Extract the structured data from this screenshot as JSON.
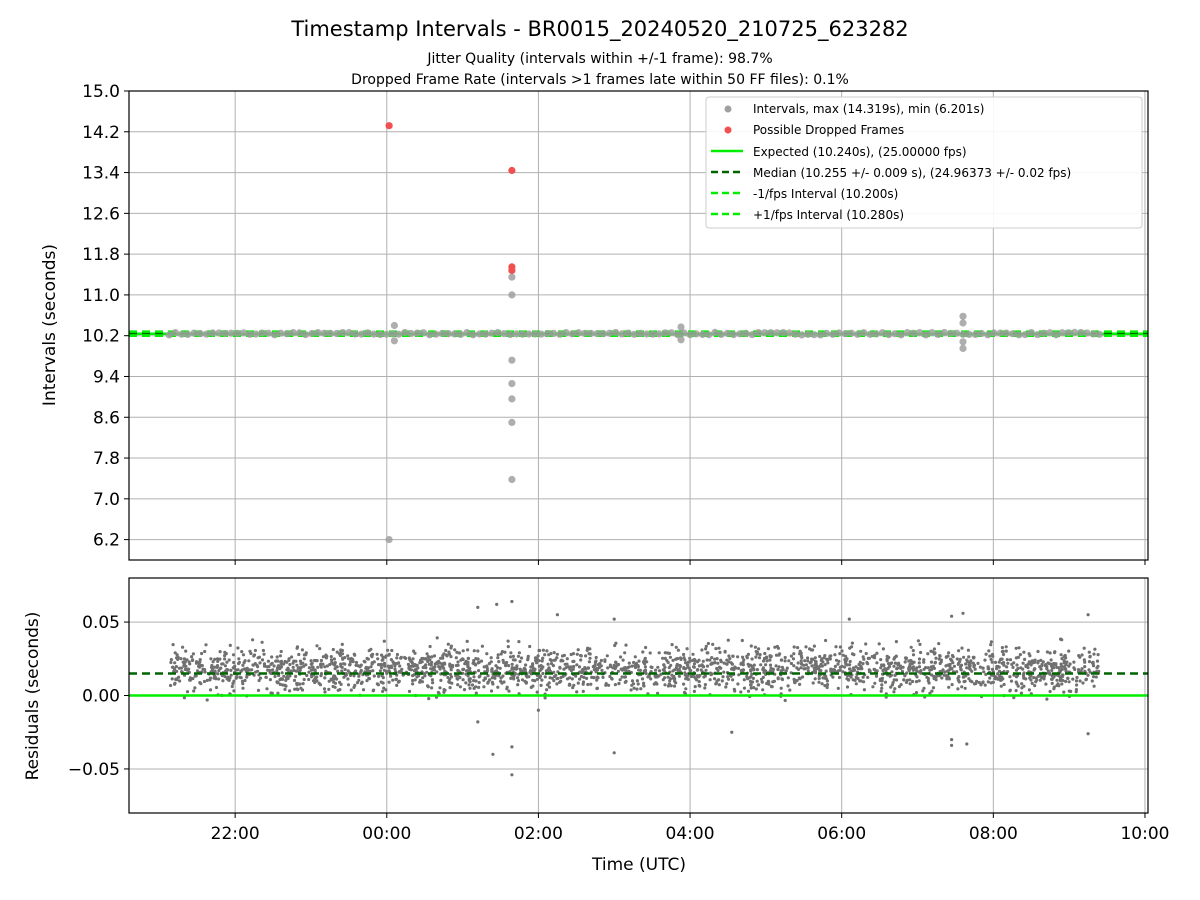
{
  "chart_data": [
    {
      "type": "scatter",
      "title": "Timestamp Intervals - BR0015_20240520_210725_623282",
      "subtitle_1": "Jitter Quality (intervals within +/-1 frame): 98.7%",
      "subtitle_2": "Dropped Frame Rate (intervals >1 frames late within 50 FF files): 0.1%",
      "xlabel": "Time (UTC)",
      "ylabel": "Intervals (seconds)",
      "x_range_hours": [
        20.6,
        34.04
      ],
      "ylim": [
        5.8,
        15.0
      ],
      "y_ticks": [
        "6.2",
        "7.0",
        "7.8",
        "8.6",
        "9.4",
        "10.2",
        "11.0",
        "11.8",
        "12.6",
        "13.4",
        "14.2",
        "15.0"
      ],
      "grid": true,
      "legend_position": "upper right",
      "series": [
        {
          "name": "Intervals, max (14.319s), min (6.201s)",
          "color": "#a0a0a0",
          "marker": "circle",
          "baseline_range_hours": [
            21.13,
            33.4
          ],
          "baseline_value": 10.24,
          "outliers": [
            {
              "x": 24.03,
              "y": 6.201
            },
            {
              "x": 24.1,
              "y": 10.4
            },
            {
              "x": 24.1,
              "y": 10.1
            },
            {
              "x": 25.65,
              "y": 11.35
            },
            {
              "x": 25.65,
              "y": 11.0
            },
            {
              "x": 25.65,
              "y": 9.72
            },
            {
              "x": 25.65,
              "y": 9.26
            },
            {
              "x": 25.65,
              "y": 8.96
            },
            {
              "x": 25.65,
              "y": 8.5
            },
            {
              "x": 25.65,
              "y": 7.38
            },
            {
              "x": 27.88,
              "y": 10.37
            },
            {
              "x": 27.88,
              "y": 10.12
            },
            {
              "x": 31.6,
              "y": 10.58
            },
            {
              "x": 31.6,
              "y": 10.45
            },
            {
              "x": 31.6,
              "y": 10.08
            },
            {
              "x": 31.6,
              "y": 9.95
            }
          ]
        },
        {
          "name": "Possible Dropped Frames",
          "color": "#f05050",
          "marker": "circle",
          "points": [
            {
              "x": 24.03,
              "y": 14.319
            },
            {
              "x": 25.65,
              "y": 13.44
            },
            {
              "x": 25.65,
              "y": 11.55
            },
            {
              "x": 25.65,
              "y": 11.48
            }
          ]
        },
        {
          "name": "Expected (10.240s), (25.00000 fps)",
          "color": "#00ee00",
          "style": "solid",
          "value": 10.24
        },
        {
          "name": "Median (10.255 +/- 0.009 s), (24.96373 +/- 0.02 fps)",
          "color": "#006400",
          "style": "dashed",
          "value": 10.255
        },
        {
          "name": "-1/fps Interval (10.200s)",
          "color": "#00ee00",
          "style": "dashed",
          "value": 10.2
        },
        {
          "name": "+1/fps Interval (10.280s)",
          "color": "#00ee00",
          "style": "dashed",
          "value": 10.28
        }
      ]
    },
    {
      "type": "scatter",
      "xlabel": "Time (UTC)",
      "ylabel": "Residuals (seconds)",
      "x_range_hours": [
        20.6,
        34.04
      ],
      "x_tick_hours": [
        22,
        24,
        26,
        28,
        30,
        32,
        34
      ],
      "x_ticks": [
        "22:00",
        "00:00",
        "02:00",
        "04:00",
        "06:00",
        "08:00",
        "10:00"
      ],
      "ylim": [
        -0.08,
        0.08
      ],
      "y_tick_values": [
        -0.05,
        0.0,
        0.05
      ],
      "y_ticks": [
        "−0.05",
        "0.00",
        "0.05"
      ],
      "grid": true,
      "residual_points": {
        "color": "#707070",
        "range_hours": [
          21.13,
          33.4
        ],
        "typical_band": [
          -0.005,
          0.04
        ],
        "outliers": [
          {
            "x": 25.65,
            "y": 0.064
          },
          {
            "x": 25.45,
            "y": 0.062
          },
          {
            "x": 25.2,
            "y": 0.06
          },
          {
            "x": 26.25,
            "y": 0.055
          },
          {
            "x": 27.0,
            "y": 0.052
          },
          {
            "x": 30.1,
            "y": 0.052
          },
          {
            "x": 31.6,
            "y": 0.056
          },
          {
            "x": 31.45,
            "y": 0.054
          },
          {
            "x": 33.25,
            "y": 0.055
          },
          {
            "x": 25.4,
            "y": -0.04
          },
          {
            "x": 25.65,
            "y": -0.035
          },
          {
            "x": 25.65,
            "y": -0.054
          },
          {
            "x": 27.0,
            "y": -0.039
          },
          {
            "x": 28.55,
            "y": -0.025
          },
          {
            "x": 31.45,
            "y": -0.03
          },
          {
            "x": 31.45,
            "y": -0.034
          },
          {
            "x": 31.65,
            "y": -0.033
          },
          {
            "x": 33.25,
            "y": -0.026
          },
          {
            "x": 25.2,
            "y": -0.018
          },
          {
            "x": 26.0,
            "y": -0.01
          }
        ]
      },
      "lines": [
        {
          "color": "#00ee00",
          "style": "solid",
          "value": 0.0
        },
        {
          "color": "#006400",
          "style": "dashed",
          "value": 0.015
        }
      ]
    }
  ]
}
